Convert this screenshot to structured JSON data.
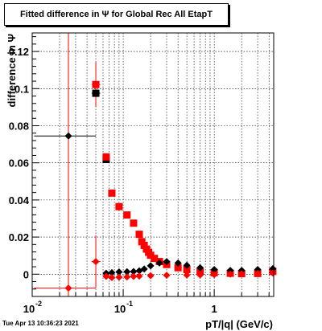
{
  "header": {
    "title": "Fitted difference in Ψ  for Global Rec All EtapT"
  },
  "footer": {
    "timestamp": "Tue Apr 13 10:36:23 2021"
  },
  "chart_data": {
    "type": "scatter",
    "title": "Fitted difference in Ψ  for Global Rec All EtapT",
    "xlabel": "pT/|q| (GeV/c)",
    "ylabel": "difference in Ψ",
    "xscale": "log",
    "xlim": [
      0.01,
      4.5
    ],
    "ylim": [
      -0.012,
      0.13
    ],
    "grid": true,
    "x_tick_labels": [
      {
        "value": 0.01,
        "label": "10",
        "exp": "-2"
      },
      {
        "value": 0.1,
        "label": "10",
        "exp": "-1"
      },
      {
        "value": 1,
        "label": "1",
        "exp": ""
      }
    ],
    "y_tick_labels": [
      "0",
      "0.02",
      "0.04",
      "0.06",
      "0.08",
      "0.1",
      "0.12"
    ],
    "y_ticks": [
      0,
      0.02,
      0.04,
      0.06,
      0.08,
      0.1,
      0.12
    ],
    "series": [
      {
        "marker": "square",
        "color": "#000000",
        "x": [
          0.05,
          0.065
        ],
        "y": [
          0.0975,
          0.0618
        ]
      },
      {
        "marker": "square",
        "color": "#ff0000",
        "x": [
          0.05,
          0.065,
          0.075,
          0.09,
          0.11,
          0.13,
          0.15,
          0.16,
          0.17,
          0.18,
          0.19,
          0.2,
          0.22,
          0.25,
          0.3,
          0.4,
          0.5,
          0.7,
          1.0,
          1.5,
          2.0,
          3.0,
          4.4
        ],
        "y": [
          0.1022,
          0.0632,
          0.0437,
          0.0364,
          0.0319,
          0.0275,
          0.0215,
          0.0175,
          0.0155,
          0.0135,
          0.0118,
          0.0102,
          0.0085,
          0.0068,
          0.0052,
          0.0035,
          0.0025,
          0.0015,
          0.0008,
          0.0005,
          0.0003,
          0.0004,
          0.0015
        ]
      },
      {
        "marker": "diamond",
        "color": "#000000",
        "x": [
          0.025,
          0.065,
          0.075,
          0.09,
          0.11,
          0.13,
          0.15,
          0.17,
          0.2,
          0.25,
          0.3,
          0.4,
          0.5,
          0.7,
          1.0,
          1.5,
          2.0,
          3.0,
          4.4
        ],
        "y": [
          0.0745,
          0.0005,
          0.0008,
          0.0012,
          0.0013,
          0.0014,
          0.0018,
          0.0028,
          0.0045,
          0.006,
          0.0068,
          0.006,
          0.0048,
          0.0035,
          0.0025,
          0.002,
          0.002,
          0.0025,
          0.003
        ]
      },
      {
        "marker": "diamond",
        "color": "#ff0000",
        "x": [
          0.025,
          0.05,
          0.065,
          0.075,
          0.09,
          0.11,
          0.13,
          0.15,
          0.2,
          0.3,
          0.5,
          0.7,
          1.0,
          1.5,
          2.0,
          3.0,
          4.4
        ],
        "y": [
          -0.0075,
          0.0068,
          -0.0012,
          -0.0018,
          -0.0016,
          -0.0015,
          -0.0012,
          -0.001,
          -0.0008,
          -0.0006,
          -0.0005,
          -0.0004,
          -0.0002,
          0.0,
          0.0002,
          0.0004,
          0.0006
        ]
      }
    ]
  }
}
